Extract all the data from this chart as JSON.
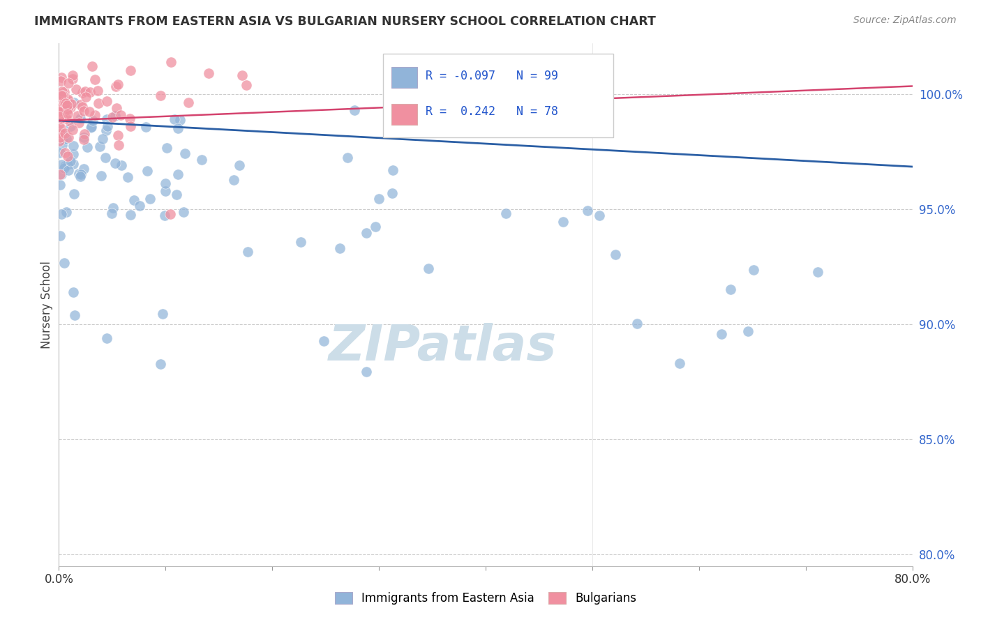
{
  "title": "IMMIGRANTS FROM EASTERN ASIA VS BULGARIAN NURSERY SCHOOL CORRELATION CHART",
  "source": "Source: ZipAtlas.com",
  "ylabel": "Nursery School",
  "xlim": [
    0.0,
    0.8
  ],
  "ylim": [
    0.795,
    1.022
  ],
  "yticks": [
    0.8,
    0.85,
    0.9,
    0.95,
    1.0
  ],
  "ytick_labels": [
    "80.0%",
    "85.0%",
    "90.0%",
    "95.0%",
    "100.0%"
  ],
  "xticks": [
    0.0,
    0.1,
    0.2,
    0.3,
    0.4,
    0.5,
    0.6,
    0.7,
    0.8
  ],
  "xtick_labels": [
    "0.0%",
    "",
    "",
    "",
    "",
    "",
    "",
    "",
    "80.0%"
  ],
  "blue_R": -0.097,
  "blue_N": 99,
  "pink_R": 0.242,
  "pink_N": 78,
  "blue_color": "#91b4d9",
  "pink_color": "#f090a0",
  "blue_line_color": "#2b5fa5",
  "pink_line_color": "#d4436e",
  "legend_R_color": "#2255cc",
  "title_color": "#333333",
  "watermark_color": "#ccdde8",
  "background_color": "#ffffff",
  "blue_line_y0": 0.9885,
  "blue_line_y1": 0.9685,
  "pink_line_y0": 0.9885,
  "pink_line_y1": 1.0035
}
